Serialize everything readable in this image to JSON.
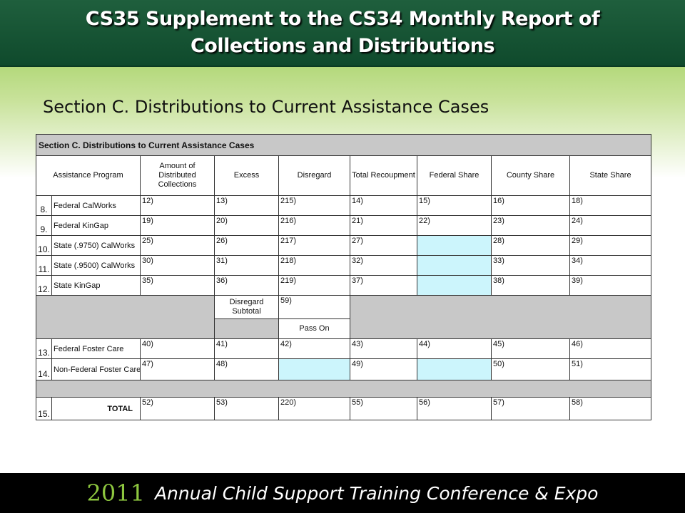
{
  "header": {
    "title_line1": "CS35 Supplement to the CS34 Monthly Report of",
    "title_line2": "Collections and Distributions"
  },
  "section_title": "Section C.  Distributions to Current Assistance Cases",
  "form": {
    "section_label": "Section C.     Distributions to Current Assistance Cases",
    "columns": [
      "Assistance Program",
      "Amount of Distributed Collections",
      "Excess",
      "Disregard",
      "Total Recoupment",
      "Federal Share",
      "County Share",
      "State Share"
    ],
    "rows": [
      {
        "num": "8.",
        "name": "Federal CalWorks",
        "cells": [
          "12)",
          "13)",
          "215)",
          "14)",
          "15)",
          "16)",
          "18)"
        ]
      },
      {
        "num": "9.",
        "name": "Federal KinGap",
        "cells": [
          "19)",
          "20)",
          "216)",
          "21)",
          "22)",
          "23)",
          "24)"
        ]
      },
      {
        "num": "10.",
        "name": "State (.9750) CalWorks",
        "cells": [
          "25)",
          "26)",
          "217)",
          "27)",
          "",
          "28)",
          "29)"
        ]
      },
      {
        "num": "11.",
        "name": "State (.9500) CalWorks",
        "cells": [
          "30)",
          "31)",
          "218)",
          "32)",
          "",
          "33)",
          "34)"
        ]
      },
      {
        "num": "12.",
        "name": "State KinGap",
        "cells": [
          "35)",
          "36)",
          "219)",
          "37)",
          "",
          "38)",
          "39)"
        ]
      }
    ],
    "disregard_subtotal_label": "Disregard Subtotal",
    "disregard_subtotal_num": "59)",
    "pass_on_label": "Pass On",
    "rows2": [
      {
        "num": "13.",
        "name": "Federal Foster Care",
        "cells": [
          "40)",
          "41)",
          "42)",
          "43)",
          "44)",
          "45)",
          "46)"
        ]
      },
      {
        "num": "14.",
        "name": "Non-Federal Foster Care",
        "cells": [
          "47)",
          "48)",
          "",
          "49)",
          "",
          "50)",
          "51)"
        ]
      }
    ],
    "total_row": {
      "num": "15.",
      "name": "TOTAL",
      "cells": [
        "52)",
        "53)",
        "220)",
        "55)",
        "56)",
        "57)",
        "58)"
      ]
    }
  },
  "footer": {
    "year": "2011",
    "conference": "Annual Child Support Training Conference & Expo"
  },
  "colors": {
    "header_green": "#1f5f3d",
    "cyan_cell": "#ccf5fc",
    "gray_cell": "#c8c8c8",
    "footer_year": "#8dc63f"
  }
}
